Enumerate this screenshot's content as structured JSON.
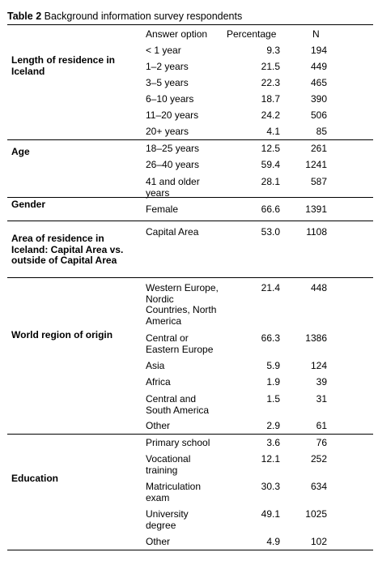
{
  "caption": {
    "label": "Table 2",
    "title": "Background information survey respondents"
  },
  "headers": {
    "option": "Answer option",
    "percentage": "Percentage",
    "n": "N"
  },
  "groups": [
    {
      "name": "Length of residence in Iceland",
      "rows": [
        {
          "option": "< 1 year",
          "pct": "9.3",
          "n": "194"
        },
        {
          "option": "1–2 years",
          "pct": "21.5",
          "n": "449"
        },
        {
          "option": "3–5 years",
          "pct": "22.3",
          "n": "465"
        },
        {
          "option": "6–10 years",
          "pct": "18.7",
          "n": "390"
        },
        {
          "option": "11–20 years",
          "pct": "24.2",
          "n": "506"
        },
        {
          "option": "20+ years",
          "pct": "4.1",
          "n": "85"
        }
      ]
    },
    {
      "name": "Age",
      "rows": [
        {
          "option": "18–25 years",
          "pct": "12.5",
          "n": "261"
        },
        {
          "option": "26–40 years",
          "pct": "59.4",
          "n": "1241"
        },
        {
          "option": "41 and older years",
          "pct": "28.1",
          "n": "587"
        }
      ]
    },
    {
      "name": "Gender",
      "rows": [
        {
          "option": "Female",
          "pct": "66.6",
          "n": "1391"
        }
      ]
    },
    {
      "name": "Area of residence in Iceland: Capital Area vs. outside of Capital Area",
      "rows": [
        {
          "option": "Capital Area",
          "pct": "53.0",
          "n": "1108"
        }
      ]
    },
    {
      "name": "World region of origin",
      "rows": [
        {
          "option": "Western Europe, Nordic Countries, North America",
          "pct": "21.4",
          "n": "448"
        },
        {
          "option": "Central or Eastern Europe",
          "pct": "66.3",
          "n": "1386"
        },
        {
          "option": "Asia",
          "pct": "5.9",
          "n": "124"
        },
        {
          "option": "Africa",
          "pct": "1.9",
          "n": "39"
        },
        {
          "option": "Central and South America",
          "pct": "1.5",
          "n": "31"
        },
        {
          "option": "Other",
          "pct": "2.9",
          "n": "61"
        }
      ]
    },
    {
      "name": "Education",
      "rows": [
        {
          "option": "Primary school",
          "pct": "3.6",
          "n": "76"
        },
        {
          "option": "Vocational training",
          "pct": "12.1",
          "n": "252"
        },
        {
          "option": "Matriculation exam",
          "pct": "30.3",
          "n": "634"
        },
        {
          "option": "University degree",
          "pct": "49.1",
          "n": "1025"
        },
        {
          "option": "Other",
          "pct": "4.9",
          "n": "102"
        }
      ]
    }
  ]
}
